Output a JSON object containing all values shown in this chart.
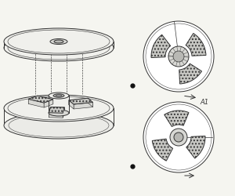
{
  "bg_color": "#f5f5f0",
  "line_color": "#333333",
  "hatch_color": "#888888",
  "dot_color": "#111111",
  "label_A1": "A1",
  "figsize": [
    3.0,
    2.5
  ],
  "dpi": 100,
  "fc_light": "#f0f0ec",
  "fc_mid": "#d8d8d4",
  "fc_dark": "#b8b8b4",
  "fc_wedge": "#c8c8c4",
  "fc_bowl": "#ebebe7"
}
